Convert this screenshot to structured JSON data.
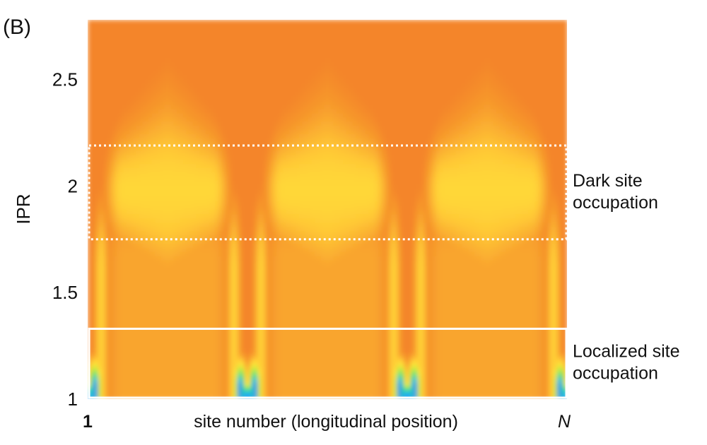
{
  "panel_label": "(B)",
  "chart_data": {
    "type": "heatmap",
    "ylabel": "IPR",
    "xlabel": "site number (longitudinal position)",
    "ylim": [
      1,
      2.78
    ],
    "yticks": [
      {
        "value": 1,
        "label": "1"
      },
      {
        "value": 1.5,
        "label": "1.5"
      },
      {
        "value": 2,
        "label": "2"
      },
      {
        "value": 2.5,
        "label": "2.5"
      }
    ],
    "xticks": [
      {
        "value": 0,
        "label": "1"
      },
      {
        "value": 1,
        "label": "N"
      }
    ],
    "period_sites": 3,
    "colormap": [
      "#1a1aff",
      "#1fb4ff",
      "#2ee07a",
      "#b6ec3b",
      "#ffe93a",
      "#ffc936",
      "#f79a2c",
      "#f17426",
      "#e8472a"
    ],
    "annotations": [
      {
        "label_lines": [
          "Dark site",
          "occupation"
        ],
        "y_range": [
          1.75,
          2.19
        ],
        "style": "dotted"
      },
      {
        "label_lines": [
          "Localized site",
          "occupation"
        ],
        "y_range": [
          1.0,
          1.33
        ],
        "style": "solid"
      }
    ]
  }
}
